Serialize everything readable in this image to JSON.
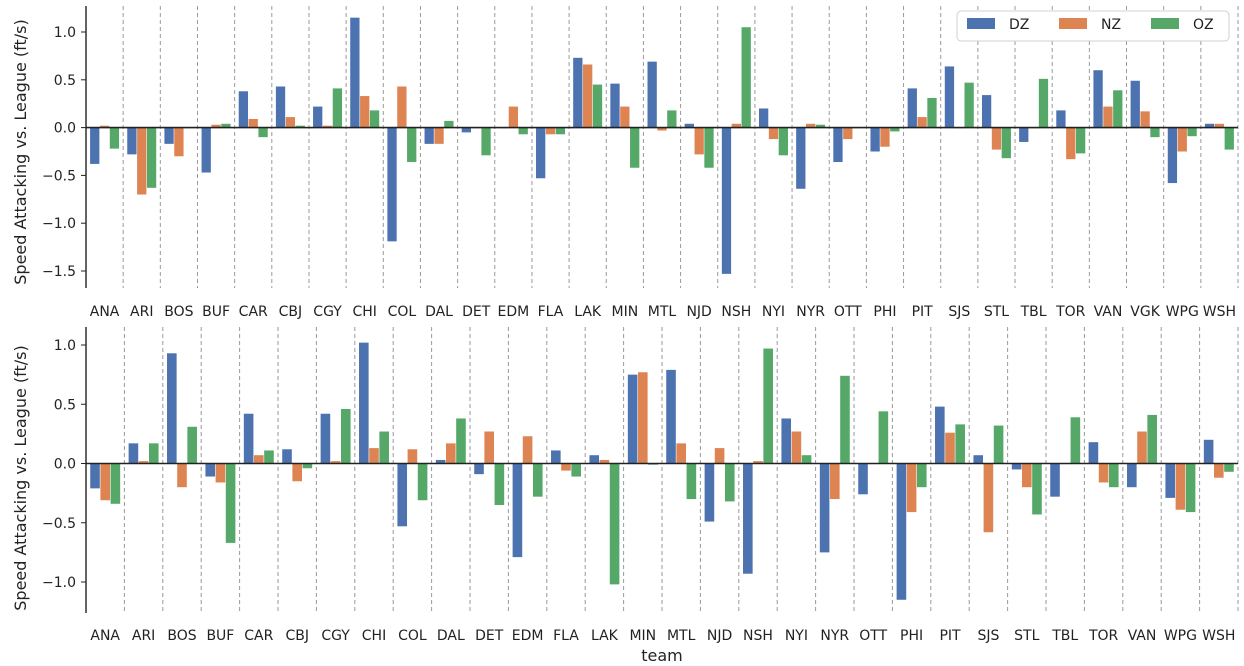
{
  "chart_data": [
    {
      "type": "bar",
      "title": "",
      "xlabel": "",
      "ylabel": "Speed Attacking vs. League (ft/s)",
      "ylim": [
        -1.68,
        1.3
      ],
      "yticks": [
        -1.5,
        -1.0,
        -0.5,
        0.0,
        0.5,
        1.0
      ],
      "ytick_labels": [
        "−1.5",
        "−1.0",
        "−0.5",
        "0.0",
        "0.5",
        "1.0"
      ],
      "grid": "vertical dashed separators between teams",
      "legend_position": "top-right",
      "categories": [
        "ANA",
        "ARI",
        "BOS",
        "BUF",
        "CAR",
        "CBJ",
        "CGY",
        "CHI",
        "COL",
        "DAL",
        "DET",
        "EDM",
        "FLA",
        "LAK",
        "MIN",
        "MTL",
        "NJD",
        "NSH",
        "NYI",
        "NYR",
        "OTT",
        "PHI",
        "PIT",
        "SJS",
        "STL",
        "TBL",
        "TOR",
        "VAN",
        "VGK",
        "WPG",
        "WSH"
      ],
      "series": [
        {
          "name": "DZ",
          "color": "#4c72b0",
          "values": [
            -0.38,
            -0.28,
            -0.17,
            -0.47,
            0.38,
            0.43,
            0.22,
            1.15,
            -1.19,
            -0.17,
            -0.05,
            0.0,
            -0.53,
            0.73,
            0.46,
            0.69,
            0.04,
            -1.53,
            0.2,
            -0.64,
            -0.36,
            -0.25,
            0.41,
            0.64,
            0.34,
            -0.15,
            0.18,
            0.6,
            0.49,
            -0.58,
            0.04
          ]
        },
        {
          "name": "NZ",
          "color": "#dd8452",
          "values": [
            0.02,
            -0.7,
            -0.3,
            0.03,
            0.09,
            0.11,
            0.02,
            0.33,
            0.43,
            -0.17,
            0.0,
            0.22,
            -0.07,
            0.66,
            0.22,
            -0.03,
            -0.28,
            0.04,
            -0.12,
            0.04,
            -0.12,
            -0.2,
            0.11,
            0.0,
            -0.23,
            0.0,
            -0.33,
            0.22,
            0.17,
            -0.25,
            0.04
          ]
        },
        {
          "name": "OZ",
          "color": "#55a868",
          "values": [
            -0.22,
            -0.63,
            0.0,
            0.04,
            -0.1,
            0.02,
            0.41,
            0.18,
            -0.36,
            0.07,
            -0.29,
            -0.07,
            -0.07,
            0.45,
            -0.42,
            0.18,
            -0.42,
            1.05,
            -0.29,
            0.03,
            0.0,
            -0.04,
            0.31,
            0.47,
            -0.32,
            0.51,
            -0.27,
            0.39,
            -0.1,
            -0.09,
            -0.23
          ]
        }
      ]
    },
    {
      "type": "bar",
      "title": "",
      "xlabel": "team",
      "ylabel": "Speed Attacking vs. League (ft/s)",
      "ylim": [
        -1.25,
        1.15
      ],
      "yticks": [
        -1.0,
        -0.5,
        0.0,
        0.5,
        1.0
      ],
      "ytick_labels": [
        "−1.0",
        "−0.5",
        "0.0",
        "0.5",
        "1.0"
      ],
      "grid": "vertical dashed separators between teams",
      "legend_position": "none",
      "categories": [
        "ANA",
        "ARI",
        "BOS",
        "BUF",
        "CAR",
        "CBJ",
        "CGY",
        "CHI",
        "COL",
        "DAL",
        "DET",
        "EDM",
        "FLA",
        "LAK",
        "MIN",
        "MTL",
        "NJD",
        "NSH",
        "NYI",
        "NYR",
        "OTT",
        "PHI",
        "PIT",
        "SJS",
        "STL",
        "TBL",
        "TOR",
        "VAN",
        "WPG",
        "WSH"
      ],
      "series": [
        {
          "name": "DZ",
          "color": "#4c72b0",
          "values": [
            -0.21,
            0.17,
            0.93,
            -0.11,
            0.42,
            0.12,
            0.42,
            1.02,
            -0.53,
            0.03,
            -0.09,
            -0.79,
            0.11,
            0.07,
            0.75,
            0.79,
            -0.49,
            -0.93,
            0.38,
            -0.75,
            -0.26,
            -1.15,
            0.48,
            0.07,
            -0.05,
            -0.28,
            0.18,
            -0.2,
            -0.29,
            0.2
          ]
        },
        {
          "name": "NZ",
          "color": "#dd8452",
          "values": [
            -0.31,
            0.02,
            -0.2,
            -0.16,
            0.07,
            -0.15,
            0.02,
            0.13,
            0.12,
            0.17,
            0.27,
            0.23,
            -0.06,
            0.03,
            0.77,
            0.17,
            0.13,
            0.02,
            0.27,
            -0.3,
            0.0,
            -0.41,
            0.26,
            -0.58,
            -0.2,
            0.0,
            -0.16,
            0.27,
            -0.39,
            -0.12
          ]
        },
        {
          "name": "OZ",
          "color": "#55a868",
          "values": [
            -0.34,
            0.17,
            0.31,
            -0.67,
            0.11,
            -0.04,
            0.46,
            0.27,
            -0.31,
            0.38,
            -0.35,
            -0.28,
            -0.11,
            -1.02,
            -0.01,
            -0.3,
            -0.32,
            0.97,
            0.07,
            0.74,
            0.44,
            -0.2,
            0.33,
            0.32,
            -0.43,
            0.39,
            -0.2,
            0.41,
            -0.41,
            -0.07
          ]
        }
      ]
    }
  ]
}
